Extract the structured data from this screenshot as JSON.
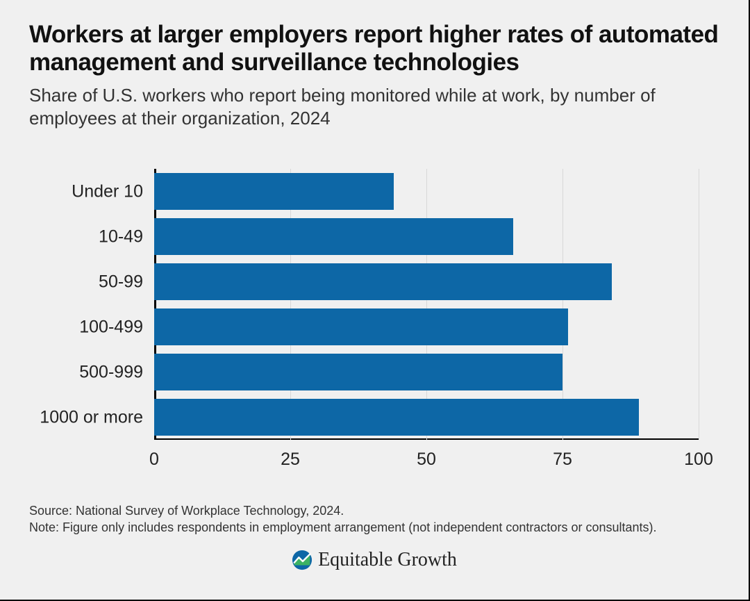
{
  "title": "Workers at larger employers report higher rates of automated management and surveillance technologies",
  "subtitle": "Share of U.S. workers who report being monitored while at work, by number of employees at their organization, 2024",
  "chart": {
    "type": "bar-horizontal",
    "categories": [
      "Under 10",
      "10-49",
      "50-99",
      "100-499",
      "500-999",
      "1000 or more"
    ],
    "values": [
      44,
      66,
      84,
      76,
      75,
      89
    ],
    "bar_color": "#0d67a6",
    "background_color": "#f0f0f0",
    "grid_color": "#d8d8d8",
    "axis_color": "#000000",
    "xlim": [
      0,
      100
    ],
    "xtick_step": 25,
    "xticks": [
      0,
      25,
      50,
      75,
      100
    ],
    "label_fontsize": 25,
    "tick_fontsize": 25,
    "title_fontsize": 35,
    "subtitle_fontsize": 26,
    "bar_gap_ratio": 0.18
  },
  "source": "Source: National Survey of Workplace Technology, 2024.",
  "note": "Note: Figure only includes respondents in employment arrangement (not independent contractors or consultants).",
  "brand": {
    "text": "Equitable Growth",
    "icon_bg": "#0d67a6",
    "icon_line": "#ffffff",
    "icon_accent": "#3fb65f"
  }
}
